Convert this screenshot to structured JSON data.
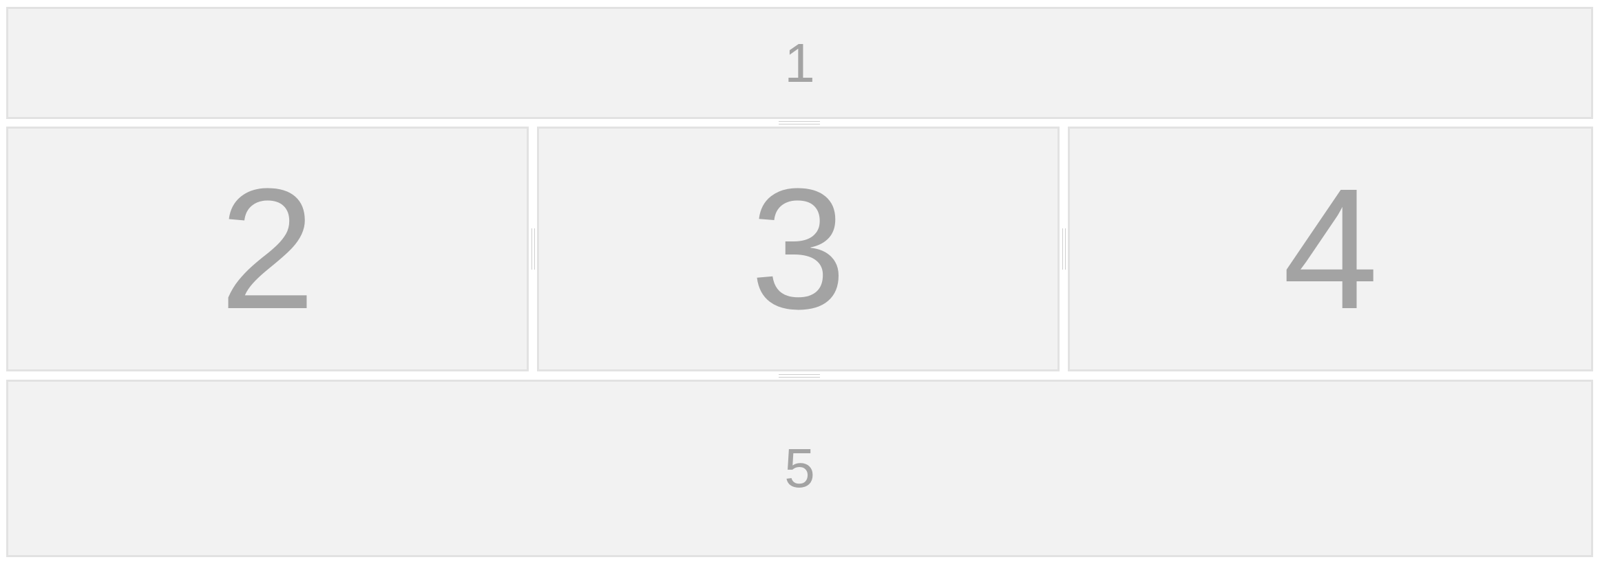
{
  "panes": {
    "top": {
      "label": "1"
    },
    "middle_left": {
      "label": "2"
    },
    "middle_center": {
      "label": "3"
    },
    "middle_right": {
      "label": "4"
    },
    "bottom": {
      "label": "5"
    }
  },
  "colors": {
    "pane_background": "#f2f2f2",
    "pane_border": "#e2e2e2",
    "label_text": "#a3a3a3",
    "splitter_grip": "#cfcfcf"
  }
}
